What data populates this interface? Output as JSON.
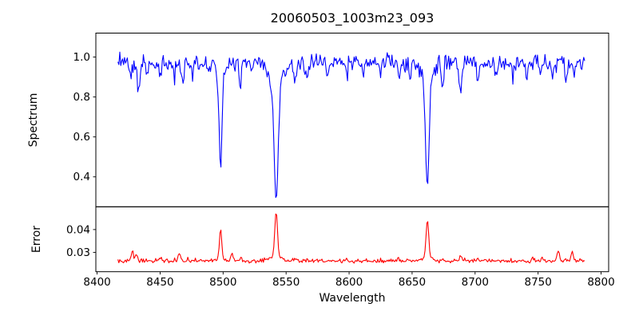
{
  "figure": {
    "title": "20060503_1003m23_093",
    "background_color": "#ffffff",
    "text_color": "#000000"
  },
  "chart_data": [
    {
      "id": "spectrum-panel",
      "type": "line",
      "title": "20060503_1003m23_093",
      "ylabel": "Spectrum",
      "line_color": "#0000ff",
      "grid": false,
      "legend": null,
      "xlim": [
        8399,
        8806
      ],
      "ylim": [
        0.25,
        1.12
      ],
      "yticks": [
        0.4,
        0.6,
        0.8,
        1.0
      ],
      "ytick_labels": [
        "0.4",
        "0.6",
        "0.8",
        "1.0"
      ],
      "x_start": 8416.5,
      "x_end": 8787,
      "x_step": 0.75,
      "continuum": 0.972,
      "noise_sigma": 0.021,
      "noise_seed": 20060503,
      "main_line_minima": [
        {
          "wavelength": 8498,
          "value": 0.45
        },
        {
          "wavelength": 8542,
          "value": 0.29
        },
        {
          "wavelength": 8662,
          "value": 0.35
        }
      ],
      "absorption_lines": [
        {
          "c": 8498.0,
          "d": 0.47,
          "w": 1.15,
          "wd": 0.055,
          "ww": 3.5
        },
        {
          "c": 8542.1,
          "d": 0.6,
          "w": 1.6,
          "wd": 0.09,
          "ww": 6.0
        },
        {
          "c": 8662.1,
          "d": 0.545,
          "w": 1.4,
          "wd": 0.075,
          "ww": 5.0
        },
        {
          "c": 8426.5,
          "d": 0.075,
          "w": 0.9
        },
        {
          "c": 8433.0,
          "d": 0.145,
          "w": 0.9
        },
        {
          "c": 8440.0,
          "d": 0.05,
          "w": 0.8
        },
        {
          "c": 8450.5,
          "d": 0.06,
          "w": 0.8
        },
        {
          "c": 8461.0,
          "d": 0.05,
          "w": 0.8
        },
        {
          "c": 8468.0,
          "d": 0.105,
          "w": 0.9
        },
        {
          "c": 8476.0,
          "d": 0.055,
          "w": 0.8
        },
        {
          "c": 8489.0,
          "d": 0.05,
          "w": 0.8
        },
        {
          "c": 8513.5,
          "d": 0.125,
          "w": 0.9
        },
        {
          "c": 8523.0,
          "d": 0.055,
          "w": 0.8
        },
        {
          "c": 8557.0,
          "d": 0.095,
          "w": 0.9
        },
        {
          "c": 8567.0,
          "d": 0.06,
          "w": 0.8
        },
        {
          "c": 8583.0,
          "d": 0.055,
          "w": 0.8
        },
        {
          "c": 8598.0,
          "d": 0.065,
          "w": 0.9
        },
        {
          "c": 8611.0,
          "d": 0.05,
          "w": 0.8
        },
        {
          "c": 8625.0,
          "d": 0.045,
          "w": 0.8
        },
        {
          "c": 8640.0,
          "d": 0.065,
          "w": 0.9
        },
        {
          "c": 8648.5,
          "d": 0.07,
          "w": 0.8
        },
        {
          "c": 8674.0,
          "d": 0.115,
          "w": 0.9
        },
        {
          "c": 8688.5,
          "d": 0.165,
          "w": 1.1
        },
        {
          "c": 8702.0,
          "d": 0.075,
          "w": 0.9
        },
        {
          "c": 8717.0,
          "d": 0.065,
          "w": 0.9
        },
        {
          "c": 8730.0,
          "d": 0.05,
          "w": 0.8
        },
        {
          "c": 8741.0,
          "d": 0.055,
          "w": 0.8
        },
        {
          "c": 8752.0,
          "d": 0.06,
          "w": 0.8
        },
        {
          "c": 8761.5,
          "d": 0.085,
          "w": 0.9
        },
        {
          "c": 8772.0,
          "d": 0.105,
          "w": 0.9
        },
        {
          "c": 8779.0,
          "d": 0.055,
          "w": 0.8
        }
      ]
    },
    {
      "id": "error-panel",
      "type": "line",
      "ylabel": "Error",
      "xlabel": "Wavelength",
      "line_color": "#ff0000",
      "grid": false,
      "legend": null,
      "xlim": [
        8399,
        8806
      ],
      "ylim": [
        0.0215,
        0.05
      ],
      "yticks": [
        0.03,
        0.04
      ],
      "ytick_labels": [
        "0.03",
        "0.04"
      ],
      "xticks": [
        8400,
        8450,
        8500,
        8550,
        8600,
        8650,
        8700,
        8750,
        8800
      ],
      "xtick_labels": [
        "8400",
        "8450",
        "8500",
        "8550",
        "8600",
        "8650",
        "8700",
        "8750",
        "8800"
      ],
      "x_start": 8416.5,
      "x_end": 8787,
      "x_step": 0.75,
      "baseline": 0.0262,
      "noise_sigma": 0.00045,
      "noise_seed": 1003093,
      "main_peak_maxima": [
        {
          "wavelength": 8498,
          "value": 0.04
        },
        {
          "wavelength": 8542,
          "value": 0.049
        },
        {
          "wavelength": 8662,
          "value": 0.045
        }
      ],
      "peaks": [
        {
          "c": 8428.0,
          "h": 0.0042,
          "w": 1.0
        },
        {
          "c": 8431.0,
          "h": 0.0028,
          "w": 0.7
        },
        {
          "c": 8450.0,
          "h": 0.0018,
          "w": 0.8
        },
        {
          "c": 8465.5,
          "h": 0.0036,
          "w": 0.9
        },
        {
          "c": 8472.0,
          "h": 0.0015,
          "w": 0.7
        },
        {
          "c": 8498.0,
          "h": 0.0132,
          "w": 0.9
        },
        {
          "c": 8498.0,
          "h": 0.0012,
          "w": 3.0
        },
        {
          "c": 8507.0,
          "h": 0.0028,
          "w": 0.9
        },
        {
          "c": 8514.0,
          "h": 0.0015,
          "w": 0.8
        },
        {
          "c": 8542.1,
          "h": 0.02,
          "w": 1.05
        },
        {
          "c": 8542.1,
          "h": 0.0022,
          "w": 4.5
        },
        {
          "c": 8557.0,
          "h": 0.0014,
          "w": 0.8
        },
        {
          "c": 8567.0,
          "h": 0.001,
          "w": 0.7
        },
        {
          "c": 8583.0,
          "h": 0.0008,
          "w": 0.7
        },
        {
          "c": 8598.0,
          "h": 0.001,
          "w": 0.8
        },
        {
          "c": 8640.0,
          "h": 0.001,
          "w": 0.8
        },
        {
          "c": 8648.0,
          "h": 0.001,
          "w": 0.7
        },
        {
          "c": 8662.1,
          "h": 0.0168,
          "w": 1.0
        },
        {
          "c": 8662.1,
          "h": 0.0018,
          "w": 4.0
        },
        {
          "c": 8674.0,
          "h": 0.0014,
          "w": 0.8
        },
        {
          "c": 8688.5,
          "h": 0.0024,
          "w": 0.9
        },
        {
          "c": 8702.0,
          "h": 0.0012,
          "w": 0.8
        },
        {
          "c": 8746.0,
          "h": 0.0018,
          "w": 0.8
        },
        {
          "c": 8753.0,
          "h": 0.0014,
          "w": 0.7
        },
        {
          "c": 8766.0,
          "h": 0.0044,
          "w": 0.85
        },
        {
          "c": 8777.0,
          "h": 0.0052,
          "w": 0.85
        },
        {
          "c": 8783.0,
          "h": 0.0012,
          "w": 0.6
        }
      ]
    }
  ]
}
